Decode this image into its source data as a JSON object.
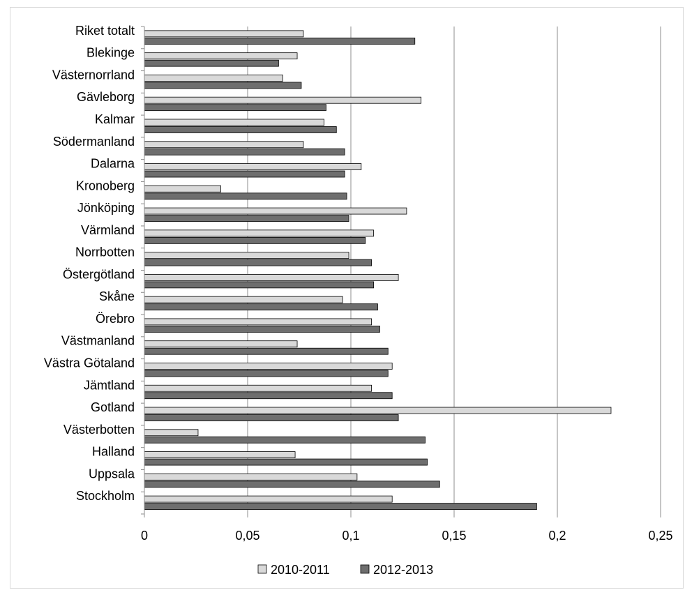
{
  "chart_data": {
    "type": "bar",
    "orientation": "horizontal",
    "categories": [
      "Riket totalt",
      "Blekinge",
      "Västernorrland",
      "Gävleborg",
      "Kalmar",
      "Södermanland",
      "Dalarna",
      "Kronoberg",
      "Jönköping",
      "Värmland",
      "Norrbotten",
      "Östergötland",
      "Skåne",
      "Örebro",
      "Västmanland",
      "Västra Götaland",
      "Jämtland",
      "Gotland",
      "Västerbotten",
      "Halland",
      "Uppsala",
      "Stockholm"
    ],
    "series": [
      {
        "name": "2010-2011",
        "color": "#d9d9d9",
        "values": [
          0.077,
          0.074,
          0.067,
          0.134,
          0.087,
          0.077,
          0.105,
          0.037,
          0.127,
          0.111,
          0.099,
          0.123,
          0.096,
          0.11,
          0.074,
          0.12,
          0.11,
          0.226,
          0.026,
          0.073,
          0.103,
          0.12
        ]
      },
      {
        "name": "2012-2013",
        "color": "#6e6e6e",
        "values": [
          0.131,
          0.065,
          0.076,
          0.088,
          0.093,
          0.097,
          0.097,
          0.098,
          0.099,
          0.107,
          0.11,
          0.111,
          0.113,
          0.114,
          0.118,
          0.118,
          0.12,
          0.123,
          0.136,
          0.137,
          0.143,
          0.19
        ]
      }
    ],
    "xlim": [
      0,
      0.25
    ],
    "ticks": [
      0,
      0.05,
      0.1,
      0.15,
      0.2,
      0.25
    ],
    "tick_labels": [
      "0",
      "0,05",
      "0,1",
      "0,15",
      "0,2",
      "0,25"
    ],
    "grid": true,
    "legend_position": "bottom"
  }
}
